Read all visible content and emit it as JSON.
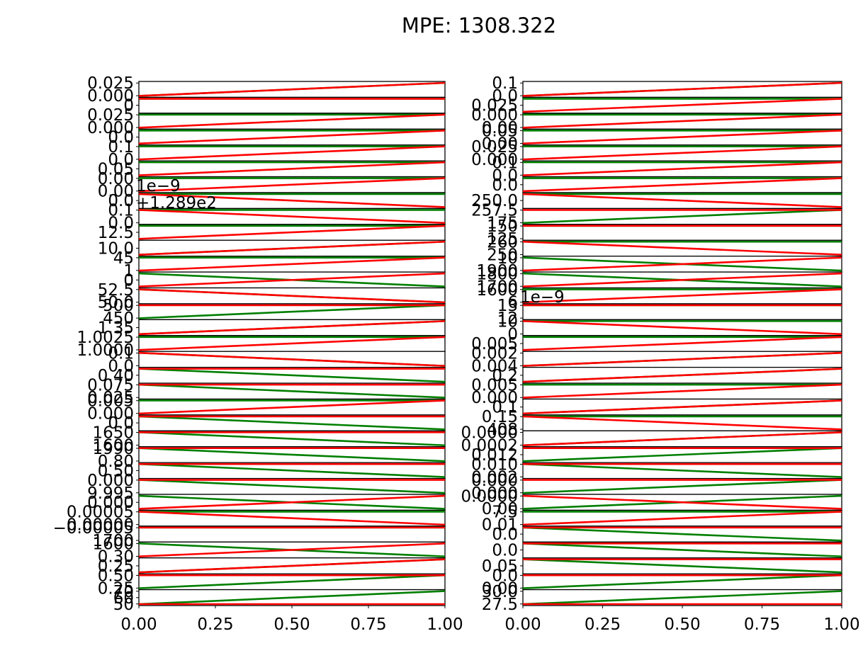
{
  "title": "MPE: 1308.322",
  "chart_data": {
    "type": "line",
    "title": "MPE: 1308.322",
    "layout": "2 columns x 32 rows of small line subplots",
    "xlim": [
      0,
      1
    ],
    "x_ticks": [
      "0.00",
      "0.25",
      "0.50",
      "0.75",
      "1.00"
    ],
    "series_colors": {
      "green": "#007f00",
      "red": "#ff0000"
    },
    "grid": false,
    "legend": "none",
    "columns": [
      {
        "panels": [
          {
            "green": [
              0,
              1
            ],
            "red": [
              0,
              1
            ],
            "yticks": [
              "0.025",
              "0.000"
            ]
          },
          {
            "green": [
              1,
              1
            ],
            "red": [
              1,
              1
            ],
            "yticks": [
              "0"
            ]
          },
          {
            "green": [
              1,
              1
            ],
            "red": [
              0,
              1
            ],
            "yticks": [
              "0.025",
              "0.000"
            ]
          },
          {
            "green": [
              1,
              1
            ],
            "red": [
              0,
              1
            ],
            "yticks": [
              "0.0"
            ]
          },
          {
            "green": [
              1,
              1
            ],
            "red": [
              0,
              1
            ],
            "yticks": [
              "0.1",
              "0.0"
            ]
          },
          {
            "green": [
              1,
              1
            ],
            "red": [
              0,
              1
            ],
            "yticks": [
              "0.05"
            ]
          },
          {
            "green": [
              1,
              1
            ],
            "red": [
              0,
              1
            ],
            "yticks": [
              "0.00",
              "0.00"
            ]
          },
          {
            "green": [
              1,
              1
            ],
            "red": [
              1,
              0
            ],
            "yticks": [
              "0.0"
            ],
            "offset_labels": [
              "1e−9",
              "+1.289e2"
            ]
          },
          {
            "green": [
              1,
              1
            ],
            "red": [
              1,
              0
            ],
            "yticks": [
              "0.1",
              "0.0"
            ]
          },
          {
            "green": [
              1,
              1
            ],
            "red": [
              0,
              1
            ],
            "yticks": [
              "12.5"
            ]
          },
          {
            "green": [
              0,
              1
            ],
            "red": [
              0,
              1
            ],
            "yticks": [
              "10.0"
            ]
          },
          {
            "green": [
              1,
              1
            ],
            "red": [
              0,
              1
            ],
            "yticks": [
              "45",
              "1"
            ]
          },
          {
            "green": [
              1,
              0
            ],
            "red": [
              0,
              1
            ],
            "yticks": [
              "0"
            ]
          },
          {
            "green": [
              1,
              0
            ],
            "red": [
              1,
              0
            ],
            "yticks": [
              "52.5",
              "50.0"
            ]
          },
          {
            "green": [
              0,
              1
            ],
            "red": [
              1,
              1
            ],
            "yticks": [
              "500",
              "450"
            ]
          },
          {
            "green": [
              0,
              1
            ],
            "red": [
              0,
              1
            ],
            "yticks": [
              "1.35"
            ]
          },
          {
            "green": [
              1,
              1
            ],
            "red": [
              0,
              1
            ],
            "yticks": [
              "1.0025",
              "1.0000"
            ]
          },
          {
            "green": [
              1,
              0
            ],
            "red": [
              1,
              0
            ],
            "yticks": [
              "0.1",
              "0.0"
            ]
          },
          {
            "green": [
              1,
              0
            ],
            "red": [
              1,
              1
            ],
            "yticks": [
              "0.40"
            ]
          },
          {
            "green": [
              1,
              0
            ],
            "red": [
              1,
              1
            ],
            "yticks": [
              "0.075",
              "0.025"
            ]
          },
          {
            "green": [
              1,
              1
            ],
            "red": [
              0,
              1
            ],
            "yticks": [
              "0.005",
              "0.000"
            ]
          },
          {
            "green": [
              1,
              0
            ],
            "red": [
              1,
              1
            ],
            "yticks": [
              "0.0"
            ]
          },
          {
            "green": [
              1,
              0
            ],
            "red": [
              1,
              1
            ],
            "yticks": [
              "1650",
              "1600"
            ]
          },
          {
            "green": [
              1,
              0
            ],
            "red": [
              1,
              1
            ],
            "yticks": [
              "1990",
              "0.80"
            ]
          },
          {
            "green": [
              1,
              0
            ],
            "red": [
              1,
              1
            ],
            "yticks": [
              "0.50"
            ]
          },
          {
            "green": [
              1,
              0
            ],
            "red": [
              1,
              1
            ],
            "yticks": [
              "0.000",
              "9.995"
            ]
          },
          {
            "green": [
              1,
              0
            ],
            "red": [
              0,
              1
            ],
            "yticks": [
              "0.000"
            ]
          },
          {
            "green": [
              1,
              1
            ],
            "red": [
              1,
              0
            ],
            "yticks": [
              "0.00005",
              "0.00000"
            ]
          },
          {
            "green": [
              1,
              1
            ],
            "red": [
              1,
              1
            ],
            "yticks": [
              "−0.00005",
              "1700"
            ]
          },
          {
            "green": [
              1,
              0
            ],
            "red": [
              0,
              1
            ],
            "yticks": [
              "1600",
              "0.30"
            ]
          },
          {
            "green": [
              0,
              1
            ],
            "red": [
              0,
              1
            ],
            "yticks": [
              "0.25"
            ]
          },
          {
            "green": [
              0,
              1
            ],
            "red": [
              1,
              1
            ],
            "yticks": [
              "0.50",
              "0.25"
            ]
          },
          {
            "green": [
              0,
              1
            ],
            "red": [
              0,
              0
            ],
            "yticks": [
              "70",
              "60",
              "50"
            ]
          }
        ]
      },
      {
        "panels": [
          {
            "green": [
              0,
              1
            ],
            "red": [
              0,
              1
            ],
            "yticks": [
              "0.1",
              "0.0"
            ]
          },
          {
            "green": [
              1,
              1
            ],
            "red": [
              0,
              1
            ],
            "yticks": [
              "0.025"
            ]
          },
          {
            "green": [
              1,
              1
            ],
            "red": [
              0,
              1
            ],
            "yticks": [
              "0.000",
              "0.00"
            ]
          },
          {
            "green": [
              1,
              1
            ],
            "red": [
              0,
              1
            ],
            "yticks": [
              "0.05",
              "0.00"
            ]
          },
          {
            "green": [
              1,
              1
            ],
            "red": [
              0,
              1
            ],
            "yticks": [
              "0.025",
              "0.000"
            ]
          },
          {
            "green": [
              1,
              1
            ],
            "red": [
              0,
              1
            ],
            "yticks": [
              "0.1",
              "0.0"
            ]
          },
          {
            "green": [
              1,
              1
            ],
            "red": [
              0,
              1
            ],
            "yticks": [
              "0.0"
            ]
          },
          {
            "green": [
              1,
              1
            ],
            "red": [
              1,
              0
            ],
            "yticks": [
              "250.0"
            ]
          },
          {
            "green": [
              0,
              1
            ],
            "red": [
              1,
              1
            ],
            "yticks": [
              "257.5",
              "175"
            ]
          },
          {
            "green": [
              1,
              1
            ],
            "red": [
              1,
              1
            ],
            "yticks": [
              "150",
              "125"
            ]
          },
          {
            "green": [
              1,
              1
            ],
            "red": [
              1,
              0
            ],
            "yticks": [
              "260",
              "250"
            ]
          },
          {
            "green": [
              1,
              0
            ],
            "red": [
              0,
              1
            ],
            "yticks": [
              "10",
              "1900"
            ]
          },
          {
            "green": [
              1,
              0
            ],
            "red": [
              0,
              1
            ],
            "yticks": [
              "1800",
              "1700"
            ]
          },
          {
            "green": [
              1,
              1
            ],
            "red": [
              0,
              1
            ],
            "yticks": [
              "1600",
              "6"
            ]
          },
          {
            "green": [
              1,
              1
            ],
            "red": [
              1,
              1
            ],
            "yticks": [
              "13",
              "12"
            ],
            "offset_labels": [
              "1e−9"
            ]
          },
          {
            "green": [
              1,
              1
            ],
            "red": [
              1,
              0
            ],
            "yticks": [
              "10",
              "0"
            ]
          },
          {
            "green": [
              1,
              1
            ],
            "red": [
              0,
              1
            ],
            "yticks": [
              "0.005"
            ]
          },
          {
            "green": [
              0,
              1
            ],
            "red": [
              0,
              1
            ],
            "yticks": [
              "0.002",
              "0.004"
            ]
          },
          {
            "green": [
              0,
              1
            ],
            "red": [
              0,
              1
            ],
            "yticks": [
              "0.2"
            ]
          },
          {
            "green": [
              1,
              1
            ],
            "red": [
              0,
              1
            ],
            "yticks": [
              "0.005",
              "0.000"
            ]
          },
          {
            "green": [
              0,
              1
            ],
            "red": [
              0,
              1
            ],
            "yticks": [
              "0.1"
            ]
          },
          {
            "green": [
              1,
              1
            ],
            "red": [
              1,
              0
            ],
            "yticks": [
              "0.15",
              "408"
            ]
          },
          {
            "green": [
              0,
              1
            ],
            "red": [
              0,
              1
            ],
            "yticks": [
              "0.0000",
              "0.0002"
            ]
          },
          {
            "green": [
              0,
              1
            ],
            "red": [
              1,
              1
            ],
            "yticks": [
              "0.012"
            ]
          },
          {
            "green": [
              1,
              0
            ],
            "red": [
              1,
              1
            ],
            "yticks": [
              "0.010",
              "0.002"
            ]
          },
          {
            "green": [
              0,
              1
            ],
            "red": [
              1,
              1
            ],
            "yticks": [
              "0.000",
              "0.000"
            ]
          },
          {
            "green": [
              0,
              1
            ],
            "red": [
              1,
              0
            ],
            "yticks": [
              "0.0000",
              "0.00"
            ]
          },
          {
            "green": [
              1,
              1
            ],
            "red": [
              0,
              1
            ],
            "yticks": [
              "7.5",
              "0.01"
            ]
          },
          {
            "green": [
              1,
              0
            ],
            "red": [
              1,
              1
            ],
            "yticks": [
              "0.0"
            ]
          },
          {
            "green": [
              1,
              0
            ],
            "red": [
              1,
              1
            ],
            "yticks": [
              "0.0"
            ]
          },
          {
            "green": [
              1,
              0
            ],
            "red": [
              1,
              1
            ],
            "yticks": [
              "0.05"
            ]
          },
          {
            "green": [
              0,
              1
            ],
            "red": [
              1,
              1
            ],
            "yticks": [
              "0.0",
              "0.00"
            ]
          },
          {
            "green": [
              0,
              1
            ],
            "red": [
              0,
              0
            ],
            "yticks": [
              "30.0",
              "27.5"
            ]
          }
        ]
      }
    ]
  }
}
